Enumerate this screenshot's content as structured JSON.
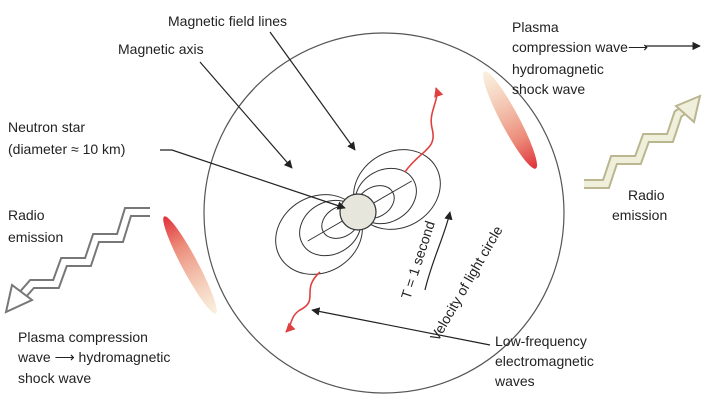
{
  "labels": {
    "field_lines": "Magnetic field lines",
    "axis": "Magnetic axis",
    "neutron_star": [
      "Neutron star",
      "(diameter ≈ 10 km)"
    ],
    "radio_left": [
      "Radio",
      "emission"
    ],
    "plasma_left": [
      "Plasma compression",
      "wave ⟶ hydromagnetic",
      "shock wave"
    ],
    "plasma_right": [
      "Plasma",
      "compression wave⟶",
      "hydromagnetic",
      "shock wave"
    ],
    "radio_right": [
      "Radio",
      "emission"
    ],
    "low_freq": [
      "Low-frequency",
      "electromagnetic",
      "waves"
    ],
    "period": "T = 1 second",
    "light_circle": "Velocity of light circle"
  }
}
